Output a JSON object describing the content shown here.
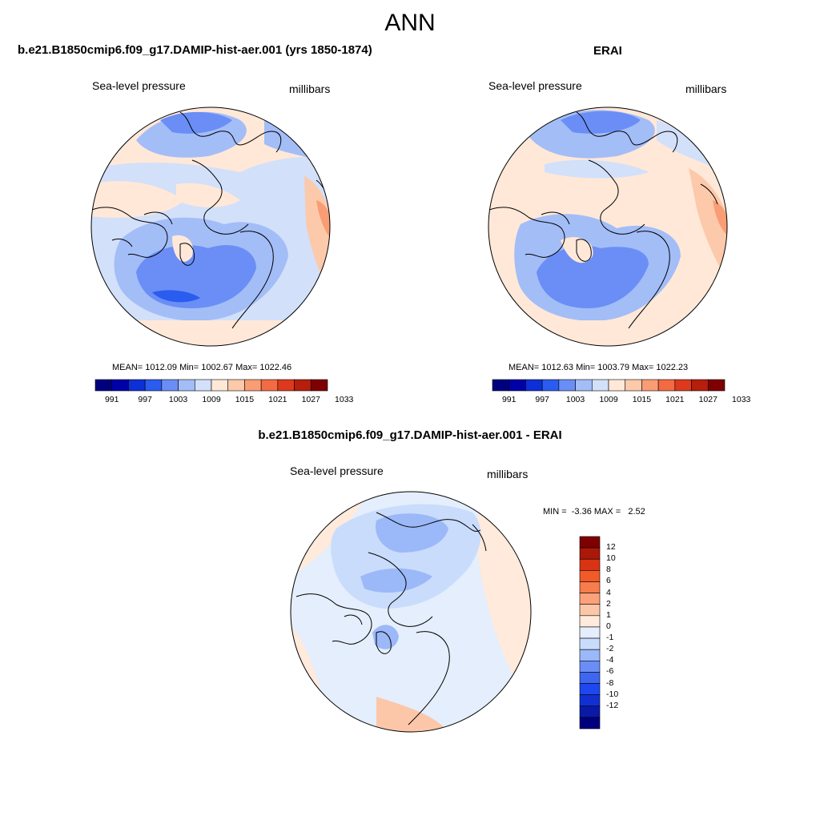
{
  "page": {
    "title": "ANN"
  },
  "colors": {
    "scale": [
      "#00007f",
      "#0000a8",
      "#0d2fd6",
      "#2a5cf0",
      "#6a8ef5",
      "#a3bdf7",
      "#d2e0fa",
      "#ffe8d8",
      "#fcc9ab",
      "#f99d74",
      "#f36b43",
      "#dd3a1d",
      "#b61e0d",
      "#7f0000"
    ],
    "diff_scale": [
      "#00007f",
      "#0a1aa6",
      "#1230d2",
      "#1e47f0",
      "#3f66f0",
      "#6a8ef5",
      "#9bb8f8",
      "#c9dcfb",
      "#e4eefc",
      "#ffeadb",
      "#fcc7a8",
      "#fba27a",
      "#f77d4d",
      "#f25a28",
      "#d83414",
      "#aa180a",
      "#7f0000"
    ],
    "outline": "#000000"
  },
  "chart_data": [
    {
      "type": "polar-contour-map",
      "title": "b.e21.B1850cmip6.f09_g17.DAMIP-hist-aer.001 (yrs 1850-1874)",
      "variable": "Sea-level pressure",
      "units": "millibars",
      "stats_text": "MEAN= 1012.09  Min= 1002.67  Max= 1022.46",
      "stats": {
        "mean": 1012.09,
        "min": 1002.67,
        "max": 1022.46
      },
      "colorbar": {
        "tick_labels": [
          "991",
          "997",
          "1003",
          "1009",
          "1015",
          "1021",
          "1027",
          "1033"
        ]
      }
    },
    {
      "type": "polar-contour-map",
      "title": "ERAI",
      "variable": "Sea-level pressure",
      "units": "millibars",
      "stats_text": "MEAN= 1012.63  Min= 1003.79  Max= 1022.23",
      "stats": {
        "mean": 1012.63,
        "min": 1003.79,
        "max": 1022.23
      },
      "colorbar": {
        "tick_labels": [
          "991",
          "997",
          "1003",
          "1009",
          "1015",
          "1021",
          "1027",
          "1033"
        ]
      }
    },
    {
      "type": "polar-contour-map",
      "title": "b.e21.B1850cmip6.f09_g17.DAMIP-hist-aer.001 - ERAI",
      "variable": "Sea-level pressure",
      "units": "millibars",
      "stats_text": "MIN =  -3.36 MAX =   2.52",
      "stats": {
        "min": -3.36,
        "max": 2.52
      },
      "colorbar": {
        "orientation": "vertical",
        "tick_labels": [
          "12",
          "10",
          "8",
          "6",
          "4",
          "2",
          "1",
          "0",
          "-1",
          "-2",
          "-4",
          "-6",
          "-8",
          "-10",
          "-12"
        ]
      }
    }
  ]
}
